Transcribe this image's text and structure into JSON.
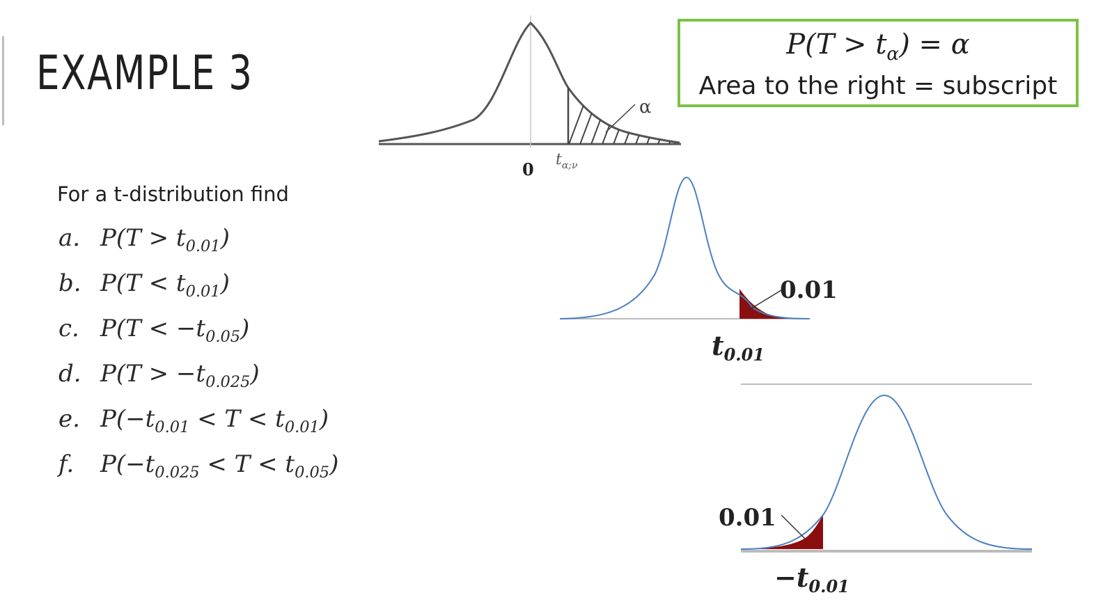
{
  "title": "EXAMPLE 3",
  "intro": "For a t-distribution find",
  "problems": [
    {
      "letter": "a.",
      "expr": "P(T > t",
      "sub1": "0.01",
      "tail": ")"
    },
    {
      "letter": "b.",
      "expr": "P(T < t",
      "sub1": "0.01",
      "tail": ")"
    },
    {
      "letter": "c.",
      "expr": "P(T < −t",
      "sub1": "0.05",
      "tail": ")"
    },
    {
      "letter": "d.",
      "expr": "P(T > −t",
      "sub1": "0.025",
      "tail": ")"
    },
    {
      "letter": "e.",
      "expr": "P(−t",
      "sub1": "0.01",
      "mid": " < T < t",
      "sub2": "0.01",
      "tail": ")"
    },
    {
      "letter": "f.",
      "expr": "P(−t",
      "sub1": "0.025",
      "mid": " < T < t",
      "sub2": "0.05",
      "tail": ")"
    }
  ],
  "formula_box": {
    "line1_pre": "P(T > t",
    "line1_sub": "α",
    "line1_post": ") = α",
    "line2": "Area to the right = subscript",
    "border_color": "#7cc244"
  },
  "diagram_top": {
    "zero_label": "0",
    "t_label": "t",
    "t_sub": "α;ν",
    "alpha_label": "α"
  },
  "diagram_right_tail": {
    "area_label": "0.01",
    "t_label": "t",
    "t_sub": "0.01",
    "fill_color": "#8b0f0f",
    "curve_color": "#4a7fc1"
  },
  "diagram_left_tail": {
    "area_label": "0.01",
    "t_label": "−t",
    "t_sub": "0.01",
    "fill_color": "#8b0f0f",
    "curve_color": "#4a7fc1"
  }
}
